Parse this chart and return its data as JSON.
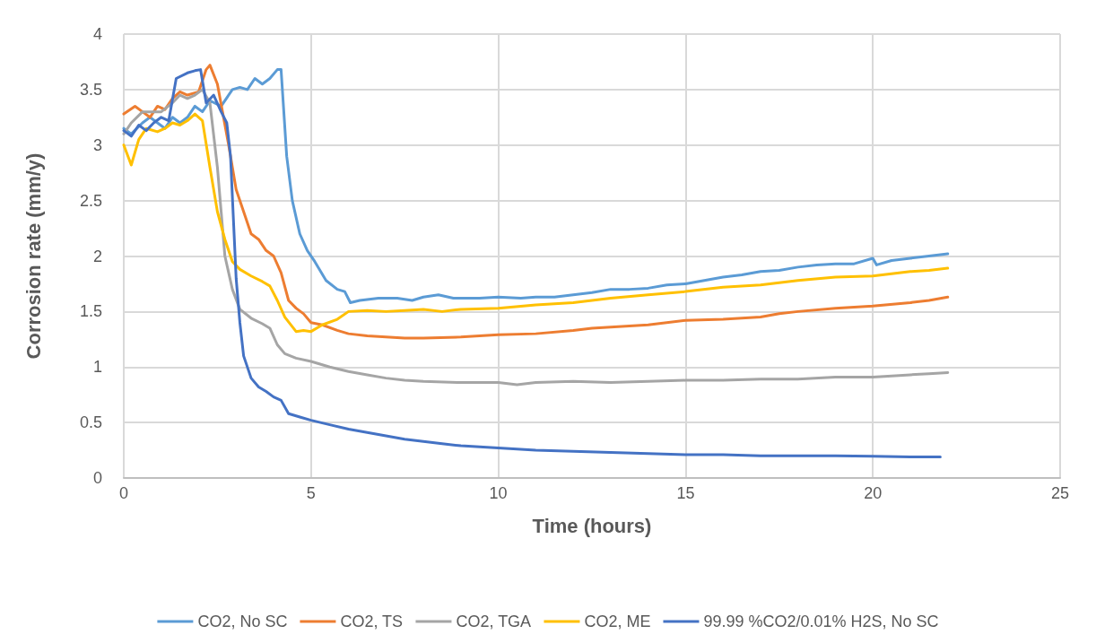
{
  "chart_data": {
    "type": "line",
    "xlabel": "Time (hours)",
    "ylabel": "Corrosion rate (mm/y)",
    "xlim": [
      0,
      25
    ],
    "xticks": [
      0,
      5,
      10,
      15,
      20,
      25
    ],
    "ylim": [
      0,
      4
    ],
    "yticks": [
      0,
      0.5,
      1,
      1.5,
      2,
      2.5,
      3,
      3.5,
      4
    ],
    "grid": true,
    "legend": "bottom",
    "marker": "none",
    "line_style": "solid",
    "series": [
      {
        "name": "CO2, No SC",
        "color": "#5b9bd5",
        "x": [
          0,
          0.2,
          0.5,
          0.7,
          0.9,
          1.1,
          1.3,
          1.5,
          1.7,
          1.9,
          2.1,
          2.3,
          2.6,
          2.9,
          3.1,
          3.3,
          3.5,
          3.7,
          3.9,
          4.1,
          4.2,
          4.35,
          4.5,
          4.7,
          4.9,
          5.1,
          5.4,
          5.7,
          5.9,
          6.05,
          6.3,
          6.8,
          7.3,
          7.7,
          8,
          8.4,
          8.8,
          9.5,
          10,
          10.6,
          11,
          11.5,
          12,
          12.5,
          13,
          13.5,
          14,
          14.5,
          15,
          15.5,
          16,
          16.5,
          17,
          17.5,
          18,
          18.5,
          19,
          19.5,
          20,
          20.1,
          20.5,
          21,
          21.5,
          22
        ],
        "values": [
          3.15,
          3.1,
          3.2,
          3.25,
          3.2,
          3.15,
          3.25,
          3.2,
          3.25,
          3.35,
          3.3,
          3.4,
          3.35,
          3.5,
          3.52,
          3.5,
          3.6,
          3.55,
          3.6,
          3.68,
          3.68,
          2.9,
          2.5,
          2.2,
          2.05,
          1.95,
          1.78,
          1.7,
          1.68,
          1.58,
          1.6,
          1.62,
          1.62,
          1.6,
          1.63,
          1.65,
          1.62,
          1.62,
          1.63,
          1.62,
          1.63,
          1.63,
          1.65,
          1.67,
          1.7,
          1.7,
          1.71,
          1.74,
          1.75,
          1.78,
          1.81,
          1.83,
          1.86,
          1.87,
          1.9,
          1.92,
          1.93,
          1.93,
          1.98,
          1.92,
          1.96,
          1.98,
          2.0,
          2.02
        ]
      },
      {
        "name": "CO2, TS",
        "color": "#ed7d31",
        "x": [
          0,
          0.3,
          0.5,
          0.7,
          0.9,
          1.1,
          1.3,
          1.5,
          1.7,
          2.0,
          2.2,
          2.3,
          2.5,
          2.8,
          3.0,
          3.2,
          3.4,
          3.6,
          3.8,
          4.0,
          4.2,
          4.4,
          4.6,
          4.8,
          5.0,
          5.3,
          5.7,
          6,
          6.5,
          7,
          7.5,
          8,
          9,
          10,
          11,
          12,
          12.5,
          13,
          13.5,
          14,
          15,
          16,
          17,
          17.5,
          18,
          19,
          20,
          21,
          21.5,
          22
        ],
        "values": [
          3.28,
          3.35,
          3.3,
          3.25,
          3.35,
          3.32,
          3.42,
          3.48,
          3.45,
          3.48,
          3.68,
          3.72,
          3.55,
          3.0,
          2.6,
          2.4,
          2.2,
          2.15,
          2.05,
          2.0,
          1.85,
          1.6,
          1.53,
          1.48,
          1.4,
          1.38,
          1.33,
          1.3,
          1.28,
          1.27,
          1.26,
          1.26,
          1.27,
          1.29,
          1.3,
          1.33,
          1.35,
          1.36,
          1.37,
          1.38,
          1.42,
          1.43,
          1.45,
          1.48,
          1.5,
          1.53,
          1.55,
          1.58,
          1.6,
          1.63
        ]
      },
      {
        "name": "CO2, TGA",
        "color": "#a5a5a5",
        "x": [
          0,
          0.2,
          0.5,
          0.8,
          1.0,
          1.3,
          1.5,
          1.7,
          1.9,
          2.1,
          2.3,
          2.5,
          2.7,
          2.9,
          3.1,
          3.4,
          3.7,
          3.9,
          4.1,
          4.3,
          4.6,
          5.0,
          5.5,
          6,
          6.5,
          7,
          7.5,
          8,
          9,
          10,
          10.5,
          11,
          12,
          13,
          14,
          15,
          16,
          17,
          18,
          19,
          20,
          21,
          21.5,
          22
        ],
        "values": [
          3.1,
          3.2,
          3.3,
          3.3,
          3.3,
          3.38,
          3.45,
          3.42,
          3.45,
          3.5,
          3.38,
          2.8,
          2.0,
          1.7,
          1.52,
          1.44,
          1.39,
          1.35,
          1.2,
          1.12,
          1.08,
          1.05,
          1.0,
          0.96,
          0.93,
          0.9,
          0.88,
          0.87,
          0.86,
          0.86,
          0.84,
          0.86,
          0.87,
          0.86,
          0.87,
          0.88,
          0.88,
          0.89,
          0.89,
          0.91,
          0.91,
          0.93,
          0.94,
          0.95
        ]
      },
      {
        "name": "CO2, ME",
        "color": "#ffc000",
        "x": [
          0,
          0.2,
          0.4,
          0.6,
          0.9,
          1.1,
          1.3,
          1.5,
          1.7,
          1.9,
          2.1,
          2.3,
          2.5,
          2.7,
          2.9,
          3.1,
          3.4,
          3.7,
          3.9,
          4.1,
          4.3,
          4.6,
          4.8,
          5.0,
          5.3,
          5.7,
          6.0,
          6.5,
          7,
          7.5,
          8,
          8.5,
          9,
          10,
          11,
          12,
          13,
          14,
          15,
          16,
          17,
          18,
          19,
          20,
          21,
          21.5,
          22
        ],
        "values": [
          3.0,
          2.82,
          3.05,
          3.15,
          3.12,
          3.15,
          3.2,
          3.18,
          3.22,
          3.28,
          3.22,
          2.8,
          2.4,
          2.15,
          1.95,
          1.88,
          1.82,
          1.77,
          1.73,
          1.6,
          1.45,
          1.32,
          1.33,
          1.32,
          1.38,
          1.43,
          1.5,
          1.51,
          1.5,
          1.51,
          1.52,
          1.5,
          1.52,
          1.53,
          1.56,
          1.58,
          1.62,
          1.65,
          1.68,
          1.72,
          1.74,
          1.78,
          1.81,
          1.82,
          1.86,
          1.87,
          1.89
        ]
      },
      {
        "name": "99.99 %CO2/0.01% H2S, No SC",
        "color": "#4472c4",
        "x": [
          0,
          0.2,
          0.4,
          0.6,
          0.8,
          1.0,
          1.2,
          1.4,
          1.7,
          1.9,
          2.05,
          2.2,
          2.4,
          2.6,
          2.75,
          2.85,
          3.0,
          3.1,
          3.2,
          3.4,
          3.6,
          3.8,
          4.0,
          4.2,
          4.4,
          4.7,
          5,
          5.5,
          6,
          6.5,
          7,
          7.5,
          8,
          8.5,
          9,
          9.5,
          10,
          11,
          12,
          13,
          14,
          15,
          16,
          17,
          18,
          19,
          20,
          21,
          21.8
        ],
        "values": [
          3.13,
          3.08,
          3.18,
          3.13,
          3.2,
          3.25,
          3.22,
          3.6,
          3.65,
          3.67,
          3.68,
          3.38,
          3.45,
          3.3,
          3.2,
          2.9,
          1.8,
          1.4,
          1.1,
          0.9,
          0.82,
          0.78,
          0.73,
          0.7,
          0.58,
          0.55,
          0.52,
          0.48,
          0.44,
          0.41,
          0.38,
          0.35,
          0.33,
          0.31,
          0.29,
          0.28,
          0.27,
          0.25,
          0.24,
          0.23,
          0.22,
          0.21,
          0.21,
          0.2,
          0.2,
          0.2,
          0.195,
          0.19,
          0.19
        ]
      }
    ]
  }
}
